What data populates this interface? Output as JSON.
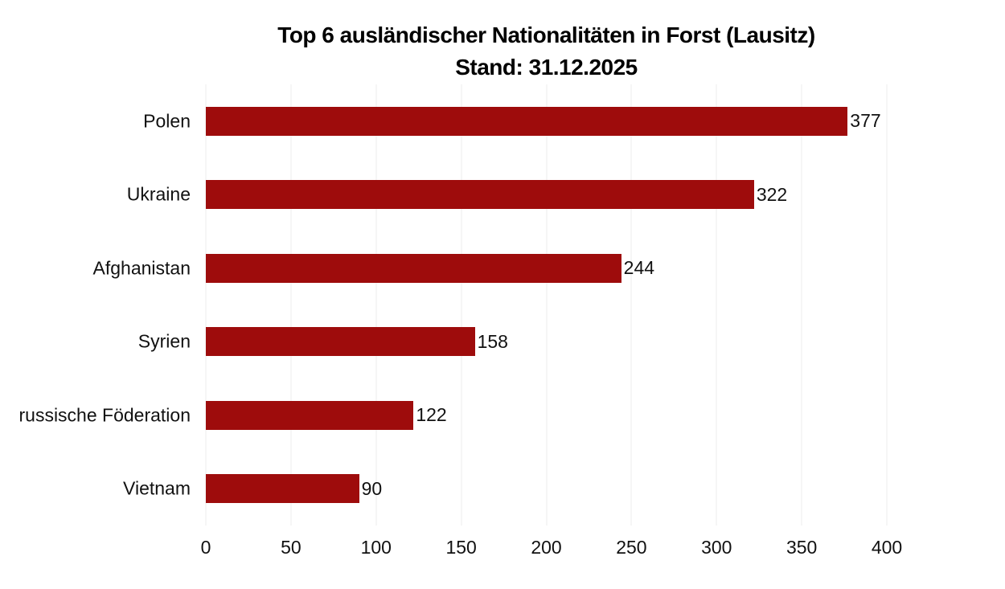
{
  "title": {
    "line1": "Top 6 ausländischer Nationalitäten in Forst (Lausitz)",
    "line2": "Stand: 31.12.2025"
  },
  "chart_data": {
    "type": "bar",
    "orientation": "horizontal",
    "title": "Top 6 ausländischer Nationalitäten in Forst (Lausitz)",
    "subtitle": "Stand: 31.12.2025",
    "categories": [
      "Polen",
      "Ukraine",
      "Afghanistan",
      "Syrien",
      "russische Föderation",
      "Vietnam"
    ],
    "values": [
      377,
      322,
      244,
      158,
      122,
      90
    ],
    "value_labels": [
      "377",
      "322",
      "244",
      "158",
      "122",
      "90"
    ],
    "xlim": [
      0,
      400
    ],
    "xticks": [
      0,
      50,
      100,
      150,
      200,
      250,
      300,
      350,
      400
    ],
    "grid": true,
    "legend": false,
    "bar_color": "#9e0c0c",
    "gridline_color": "#ececec",
    "text_color": "#111111"
  }
}
